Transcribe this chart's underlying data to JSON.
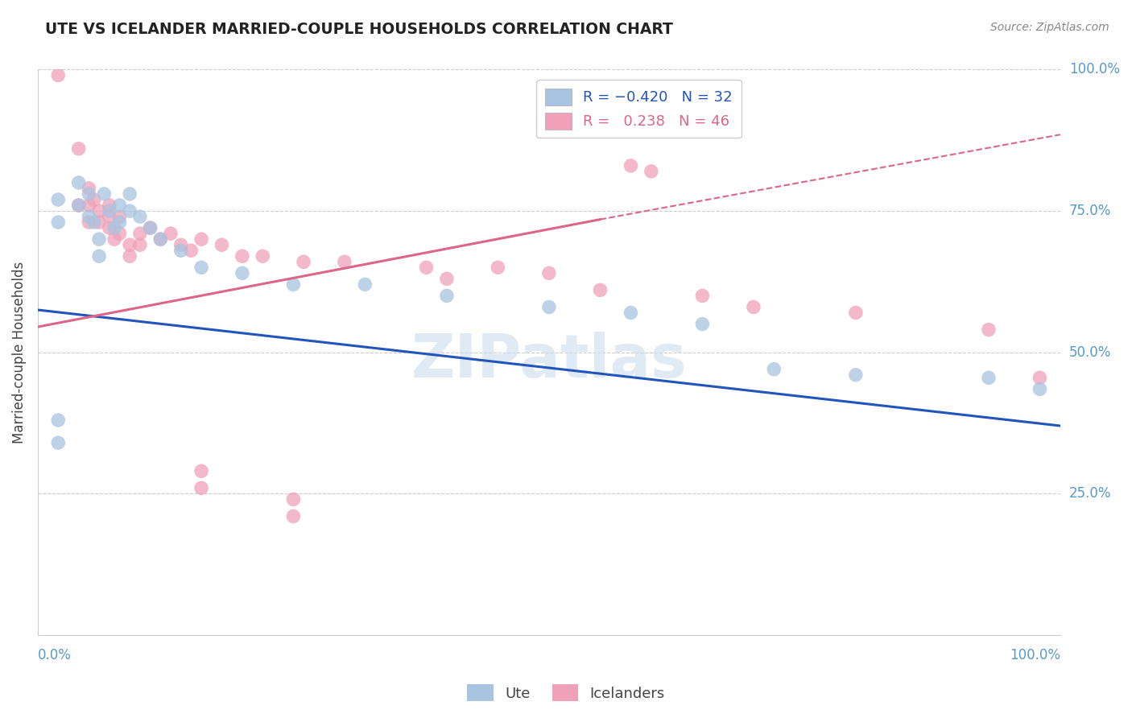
{
  "title": "UTE VS ICELANDER MARRIED-COUPLE HOUSEHOLDS CORRELATION CHART",
  "source": "Source: ZipAtlas.com",
  "ylabel": "Married-couple Households",
  "y_tick_labels": [
    "25.0%",
    "50.0%",
    "75.0%",
    "100.0%"
  ],
  "y_tick_values": [
    0.25,
    0.5,
    0.75,
    1.0
  ],
  "watermark": "ZIPatlas",
  "ute_color": "#a8c4e0",
  "icelander_color": "#f0a0b8",
  "ute_line_color": "#2255bb",
  "icelander_line_color": "#dd6688",
  "background_color": "#ffffff",
  "grid_color": "#cccccc",
  "title_color": "#222222",
  "axis_label_color": "#5599cc",
  "ute_line": [
    0.0,
    0.575,
    1.0,
    0.37
  ],
  "ice_line_solid": [
    0.0,
    0.545,
    0.55,
    0.735
  ],
  "ice_line_dashed": [
    0.55,
    0.735,
    1.0,
    0.885
  ],
  "ute_points": [
    [
      0.02,
      0.77
    ],
    [
      0.02,
      0.73
    ],
    [
      0.04,
      0.8
    ],
    [
      0.04,
      0.76
    ],
    [
      0.05,
      0.78
    ],
    [
      0.05,
      0.74
    ],
    [
      0.055,
      0.73
    ],
    [
      0.06,
      0.7
    ],
    [
      0.06,
      0.67
    ],
    [
      0.065,
      0.78
    ],
    [
      0.07,
      0.75
    ],
    [
      0.075,
      0.72
    ],
    [
      0.08,
      0.76
    ],
    [
      0.08,
      0.73
    ],
    [
      0.09,
      0.78
    ],
    [
      0.09,
      0.75
    ],
    [
      0.1,
      0.74
    ],
    [
      0.11,
      0.72
    ],
    [
      0.12,
      0.7
    ],
    [
      0.14,
      0.68
    ],
    [
      0.16,
      0.65
    ],
    [
      0.2,
      0.64
    ],
    [
      0.25,
      0.62
    ],
    [
      0.32,
      0.62
    ],
    [
      0.4,
      0.6
    ],
    [
      0.5,
      0.58
    ],
    [
      0.58,
      0.57
    ],
    [
      0.65,
      0.55
    ],
    [
      0.72,
      0.47
    ],
    [
      0.8,
      0.46
    ],
    [
      0.93,
      0.455
    ],
    [
      0.98,
      0.435
    ],
    [
      0.02,
      0.38
    ],
    [
      0.02,
      0.34
    ]
  ],
  "icelander_points": [
    [
      0.02,
      0.99
    ],
    [
      0.04,
      0.86
    ],
    [
      0.04,
      0.76
    ],
    [
      0.05,
      0.79
    ],
    [
      0.05,
      0.76
    ],
    [
      0.05,
      0.73
    ],
    [
      0.055,
      0.77
    ],
    [
      0.06,
      0.75
    ],
    [
      0.06,
      0.73
    ],
    [
      0.07,
      0.76
    ],
    [
      0.07,
      0.74
    ],
    [
      0.07,
      0.72
    ],
    [
      0.075,
      0.7
    ],
    [
      0.08,
      0.74
    ],
    [
      0.08,
      0.71
    ],
    [
      0.09,
      0.69
    ],
    [
      0.09,
      0.67
    ],
    [
      0.1,
      0.71
    ],
    [
      0.1,
      0.69
    ],
    [
      0.11,
      0.72
    ],
    [
      0.12,
      0.7
    ],
    [
      0.13,
      0.71
    ],
    [
      0.14,
      0.69
    ],
    [
      0.15,
      0.68
    ],
    [
      0.16,
      0.7
    ],
    [
      0.18,
      0.69
    ],
    [
      0.2,
      0.67
    ],
    [
      0.22,
      0.67
    ],
    [
      0.26,
      0.66
    ],
    [
      0.3,
      0.66
    ],
    [
      0.38,
      0.65
    ],
    [
      0.4,
      0.63
    ],
    [
      0.45,
      0.65
    ],
    [
      0.5,
      0.64
    ],
    [
      0.55,
      0.61
    ],
    [
      0.58,
      0.83
    ],
    [
      0.6,
      0.82
    ],
    [
      0.65,
      0.6
    ],
    [
      0.7,
      0.58
    ],
    [
      0.8,
      0.57
    ],
    [
      0.93,
      0.54
    ],
    [
      0.98,
      0.455
    ],
    [
      0.16,
      0.29
    ],
    [
      0.16,
      0.26
    ],
    [
      0.25,
      0.24
    ],
    [
      0.25,
      0.21
    ]
  ]
}
